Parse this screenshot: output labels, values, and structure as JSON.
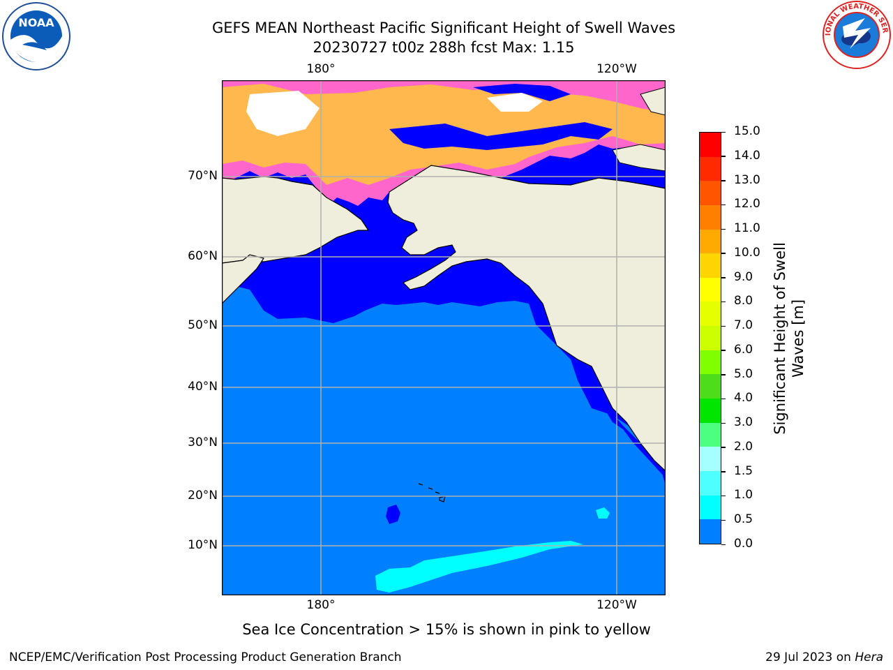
{
  "title": {
    "line1": "GEFS MEAN Northeast Pacific Significant Height of Swell Waves",
    "line2": "20230727 t00z 288h fcst   Max: 1.15"
  },
  "logos": {
    "left": "NOAA",
    "right": "NATIONAL WEATHER SERVICE"
  },
  "map": {
    "lon_labels": [
      "180°",
      "120°W"
    ],
    "lat_labels": [
      "70°N",
      "60°N",
      "50°N",
      "40°N",
      "30°N",
      "20°N",
      "10°N"
    ]
  },
  "colorbar": {
    "title_line1": "Significant Height of Swell",
    "title_line2": "Waves [m]",
    "ticks": [
      "15.0",
      "14.0",
      "13.0",
      "12.0",
      "11.0",
      "10.0",
      "9.0",
      "8.0",
      "7.0",
      "6.0",
      "5.0",
      "4.0",
      "3.0",
      "2.0",
      "1.5",
      "1.0",
      "0.5",
      "0.0"
    ],
    "colors": [
      "#ff0000",
      "#ff2a00",
      "#ff5500",
      "#ff8000",
      "#ffaa00",
      "#ffd500",
      "#ffff00",
      "#e6ff00",
      "#ccff00",
      "#80ff00",
      "#4ddd1a",
      "#00e600",
      "#4dff80",
      "#a6ffff",
      "#4dffff",
      "#00ffff",
      "#0080ff",
      "#0000ff"
    ]
  },
  "caption": "Sea Ice Concentration > 15% is shown in pink to yellow",
  "footer": {
    "left": "NCEP/EMC/Verification Post Processing Product Generation Branch",
    "right_date": "29 Jul 2023 on ",
    "right_host": "Hera"
  }
}
